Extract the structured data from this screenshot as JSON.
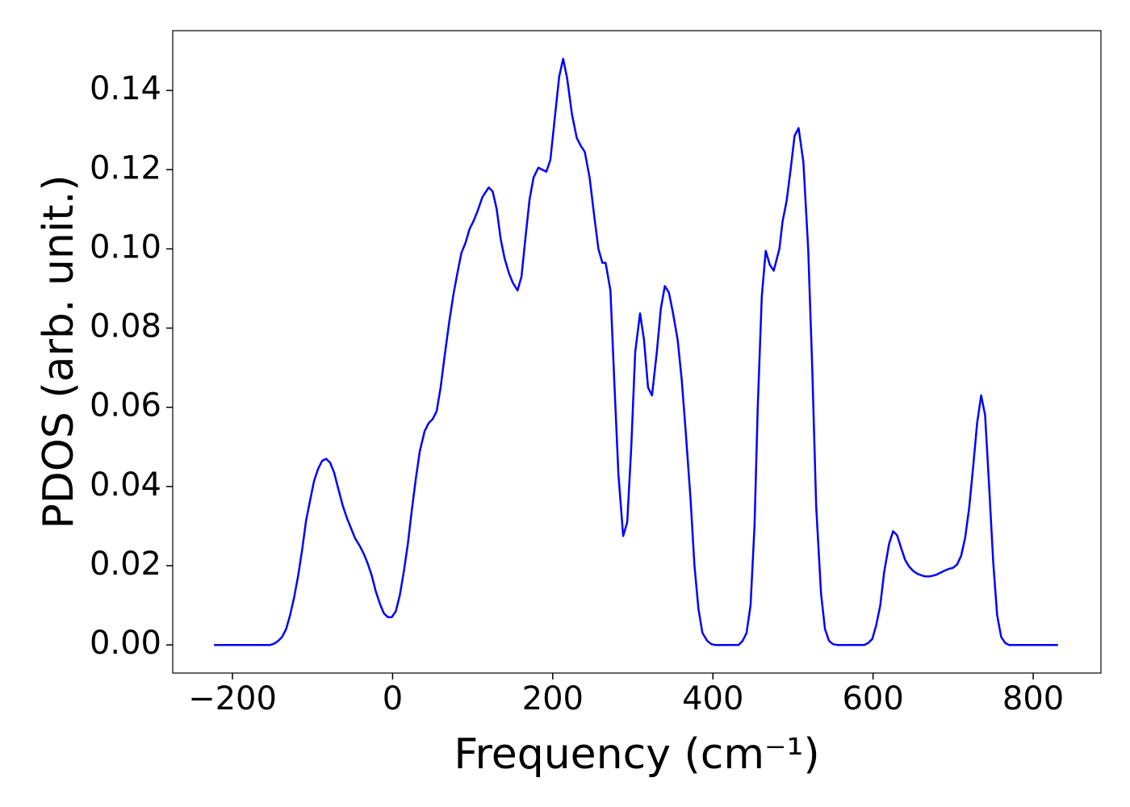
{
  "chart_data": {
    "type": "line",
    "xlabel": "Frequency (cm⁻¹)",
    "ylabel": "PDOS (arb. unit.)",
    "xlim": [
      -274.6,
      884.6
    ],
    "ylim": [
      -0.0071,
      0.1551
    ],
    "xticks": [
      {
        "value": -200,
        "label": "−200"
      },
      0,
      200,
      400,
      600,
      800
    ],
    "yticks": [
      {
        "value": 0,
        "label": "0.00"
      },
      {
        "value": 0.02,
        "label": "0.02"
      },
      {
        "value": 0.04,
        "label": "0.04"
      },
      {
        "value": 0.06,
        "label": "0.06"
      },
      {
        "value": 0.08,
        "label": "0.08"
      },
      {
        "value": 0.1,
        "label": "0.10"
      },
      {
        "value": 0.12,
        "label": "0.12"
      },
      {
        "value": 0.14,
        "label": "0.14"
      }
    ],
    "series": [
      {
        "color": "#0000ff",
        "x": [
          -223,
          -153,
          -148,
          -143,
          -138,
          -133,
          -128,
          -123,
          -118,
          -113,
          -108,
          -103,
          -98,
          -93,
          -88,
          -83,
          -78,
          -73,
          -68,
          -62,
          -57,
          -52,
          -47,
          -41,
          -36,
          -31,
          -26,
          -21,
          -16,
          -11,
          -6,
          -1,
          4,
          9,
          14,
          19,
          24,
          29,
          34,
          40,
          45,
          50,
          55,
          60,
          65,
          71,
          76,
          81,
          86,
          91,
          96,
          101,
          106,
          112,
          120,
          125,
          130,
          135,
          140,
          145,
          150,
          156,
          161,
          166,
          171,
          176,
          182,
          187,
          192,
          197,
          202,
          208,
          213,
          218,
          224,
          230,
          235,
          240,
          246,
          252,
          257,
          262,
          266,
          272,
          277,
          282,
          288,
          293,
          298,
          303,
          309,
          314,
          319,
          324,
          330,
          335,
          340,
          345,
          350,
          356,
          361,
          366,
          372,
          377,
          382,
          387,
          393,
          398,
          403,
          432,
          437,
          442,
          447,
          452,
          456,
          461,
          466,
          471,
          476,
          483,
          487,
          492,
          497,
          502,
          507,
          513,
          519,
          524,
          529,
          535,
          540,
          545,
          550,
          555,
          589,
          594,
          599,
          604,
          609,
          614,
          620,
          625,
          630,
          635,
          640,
          645,
          650,
          655,
          660,
          665,
          670,
          675,
          680,
          685,
          690,
          695,
          700,
          705,
          710,
          715,
          720,
          725,
          730,
          735,
          740,
          745,
          750,
          755,
          760,
          765,
          770,
          831
        ],
        "values": [
          0,
          0,
          0.0003,
          0.001,
          0.002,
          0.004,
          0.0075,
          0.012,
          0.0175,
          0.024,
          0.0315,
          0.0365,
          0.0415,
          0.0445,
          0.0465,
          0.047,
          0.046,
          0.0435,
          0.0395,
          0.035,
          0.032,
          0.0295,
          0.027,
          0.025,
          0.023,
          0.0205,
          0.0175,
          0.0135,
          0.0105,
          0.008,
          0.007,
          0.007,
          0.0085,
          0.0125,
          0.0185,
          0.0255,
          0.034,
          0.042,
          0.049,
          0.054,
          0.056,
          0.057,
          0.059,
          0.065,
          0.073,
          0.082,
          0.0885,
          0.094,
          0.099,
          0.1015,
          0.105,
          0.107,
          0.1095,
          0.113,
          0.1155,
          0.1145,
          0.11,
          0.1025,
          0.0975,
          0.094,
          0.0915,
          0.0895,
          0.093,
          0.103,
          0.1125,
          0.118,
          0.1205,
          0.12,
          0.1195,
          0.1225,
          0.132,
          0.1435,
          0.148,
          0.143,
          0.134,
          0.128,
          0.126,
          0.1245,
          0.118,
          0.108,
          0.1,
          0.0965,
          0.0965,
          0.0895,
          0.066,
          0.043,
          0.0275,
          0.031,
          0.05,
          0.074,
          0.0837,
          0.077,
          0.065,
          0.063,
          0.074,
          0.085,
          0.0906,
          0.089,
          0.084,
          0.077,
          0.067,
          0.054,
          0.037,
          0.02,
          0.009,
          0.003,
          0.001,
          0.0002,
          0,
          0,
          0.001,
          0.003,
          0.01,
          0.03,
          0.06,
          0.088,
          0.0995,
          0.096,
          0.0945,
          0.1,
          0.107,
          0.112,
          0.12,
          0.1285,
          0.1305,
          0.122,
          0.1,
          0.07,
          0.035,
          0.013,
          0.004,
          0.001,
          0.0002,
          0,
          0,
          0.0005,
          0.0015,
          0.005,
          0.01,
          0.0185,
          0.0255,
          0.0287,
          0.0277,
          0.0245,
          0.0215,
          0.0198,
          0.0187,
          0.018,
          0.0176,
          0.0173,
          0.0173,
          0.0175,
          0.0178,
          0.0183,
          0.0188,
          0.0192,
          0.0195,
          0.0203,
          0.0225,
          0.027,
          0.0345,
          0.045,
          0.056,
          0.063,
          0.058,
          0.04,
          0.021,
          0.0075,
          0.002,
          0.0005,
          0,
          0
        ]
      }
    ]
  }
}
